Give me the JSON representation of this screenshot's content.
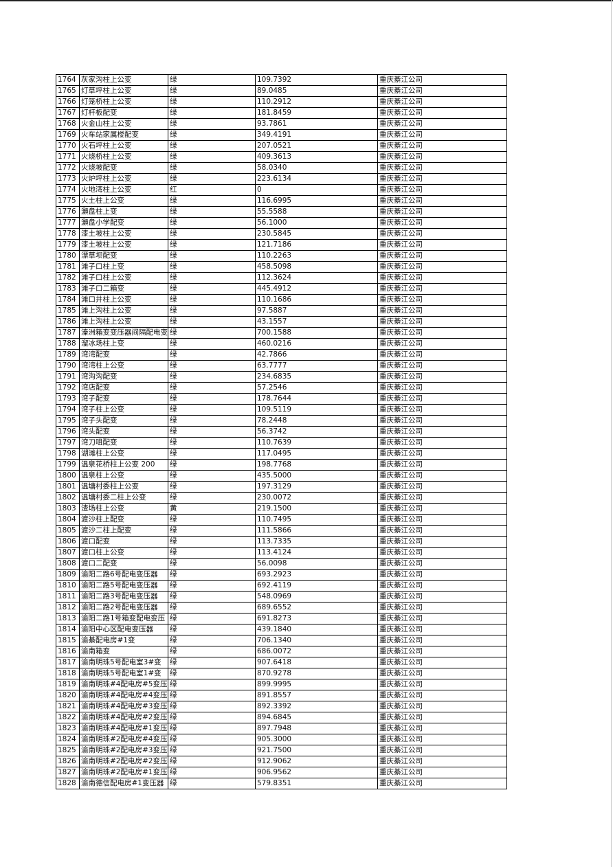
{
  "table": {
    "rows": [
      [
        "1764",
        "灰家沟柱上公变",
        "绿",
        "109.7392",
        "重庆綦江公司"
      ],
      [
        "1765",
        "灯草坪柱上公变",
        "绿",
        "89.0485",
        "重庆綦江公司"
      ],
      [
        "1766",
        "灯笼桥柱上公变",
        "绿",
        "110.2912",
        "重庆綦江公司"
      ],
      [
        "1767",
        "灯杆板配变",
        "绿",
        "181.8459",
        "重庆綦江公司"
      ],
      [
        "1768",
        "火金山柱上公变",
        "绿",
        "93.7861",
        "重庆綦江公司"
      ],
      [
        "1769",
        "火车站家属楼配变",
        "绿",
        "349.4191",
        "重庆綦江公司"
      ],
      [
        "1770",
        "火石坪柱上公变",
        "绿",
        "207.0521",
        "重庆綦江公司"
      ],
      [
        "1771",
        "火烧桥柱上公变",
        "绿",
        "409.3613",
        "重庆綦江公司"
      ],
      [
        "1772",
        "火烧坡配变",
        "绿",
        "58.0340",
        "重庆綦江公司"
      ],
      [
        "1773",
        "火炉坪柱上公变",
        "绿",
        "223.6134",
        "重庆綦江公司"
      ],
      [
        "1774",
        "火地湾柱上公变",
        "红",
        "0",
        "重庆綦江公司"
      ],
      [
        "1775",
        "火土柱上公变",
        "绿",
        "116.6995",
        "重庆綦江公司"
      ],
      [
        "1776",
        "灝盘柱上变",
        "绿",
        "55.5588",
        "重庆綦江公司"
      ],
      [
        "1777",
        "灝盘小学配变",
        "绿",
        "56.1000",
        "重庆綦江公司"
      ],
      [
        "1778",
        "漆土坡柱上公变",
        "绿",
        "230.5845",
        "重庆綦江公司"
      ],
      [
        "1779",
        "漆土坡柱上公变",
        "绿",
        "121.7186",
        "重庆綦江公司"
      ],
      [
        "1780",
        "漂草坝配变",
        "绿",
        "110.2263",
        "重庆綦江公司"
      ],
      [
        "1781",
        "滩子口柱上变",
        "绿",
        "458.5098",
        "重庆綦江公司"
      ],
      [
        "1782",
        "滩子口柱上公变",
        "绿",
        "112.3624",
        "重庆綦江公司"
      ],
      [
        "1783",
        "滩子口二箱变",
        "绿",
        "445.4912",
        "重庆綦江公司"
      ],
      [
        "1784",
        "滩口井柱上公变",
        "绿",
        "110.1686",
        "重庆綦江公司"
      ],
      [
        "1785",
        "滩上沟柱上公变",
        "绿",
        "97.5887",
        "重庆綦江公司"
      ],
      [
        "1786",
        "滩上沟柱上公变",
        "绿",
        "43.1557",
        "重庆綦江公司"
      ],
      [
        "1787",
        "溱洲箱变变压器间隔配电变",
        "绿",
        "700.1588",
        "重庆綦江公司"
      ],
      [
        "1788",
        "溜冰场柱上变",
        "绿",
        "460.0216",
        "重庆綦江公司"
      ],
      [
        "1789",
        "湾湾配变",
        "绿",
        "42.7866",
        "重庆綦江公司"
      ],
      [
        "1790",
        "湾湾柱上公变",
        "绿",
        "63.7777",
        "重庆綦江公司"
      ],
      [
        "1791",
        "湾沟沟配变",
        "绿",
        "234.6835",
        "重庆綦江公司"
      ],
      [
        "1792",
        "湾店配变",
        "绿",
        "57.2546",
        "重庆綦江公司"
      ],
      [
        "1793",
        "湾子配变",
        "绿",
        "178.7644",
        "重庆綦江公司"
      ],
      [
        "1794",
        "湾子柱上公变",
        "绿",
        "109.5119",
        "重庆綦江公司"
      ],
      [
        "1795",
        "湾子头配变",
        "绿",
        "78.2448",
        "重庆綦江公司"
      ],
      [
        "1796",
        "湾头配变",
        "绿",
        "56.3742",
        "重庆綦江公司"
      ],
      [
        "1797",
        "湾刀咀配变",
        "绿",
        "110.7639",
        "重庆綦江公司"
      ],
      [
        "1798",
        "湖滩柱上公变",
        "绿",
        "117.0495",
        "重庆綦江公司"
      ],
      [
        "1799",
        "温泉花桥柱上公变 200",
        "绿",
        "198.7768",
        "重庆綦江公司"
      ],
      [
        "1800",
        "温泉柱上公变",
        "绿",
        "435.5000",
        "重庆綦江公司"
      ],
      [
        "1801",
        "温塘村委柱上公变",
        "绿",
        "197.3129",
        "重庆綦江公司"
      ],
      [
        "1802",
        "温塘村委二柱上公变",
        "绿",
        "230.0072",
        "重庆綦江公司"
      ],
      [
        "1803",
        "渣场柱上公变",
        "黄",
        "219.1500",
        "重庆綦江公司"
      ],
      [
        "1804",
        "渡沙柱上配变",
        "绿",
        "110.7495",
        "重庆綦江公司"
      ],
      [
        "1805",
        "渡沙二柱上配变",
        "绿",
        "111.5866",
        "重庆綦江公司"
      ],
      [
        "1806",
        "渡口配变",
        "绿",
        "113.7335",
        "重庆綦江公司"
      ],
      [
        "1807",
        "渡口柱上公变",
        "绿",
        "113.4124",
        "重庆綦江公司"
      ],
      [
        "1808",
        "渡口二配变",
        "绿",
        "56.0098",
        "重庆綦江公司"
      ],
      [
        "1809",
        "渝阳二路6号配电变压器",
        "绿",
        "693.2923",
        "重庆綦江公司"
      ],
      [
        "1810",
        "渝阳二路5号配电变压器",
        "绿",
        "692.4119",
        "重庆綦江公司"
      ],
      [
        "1811",
        "渝阳二路3号配电变压器",
        "绿",
        "548.0969",
        "重庆綦江公司"
      ],
      [
        "1812",
        "渝阳二路2号配电变压器",
        "绿",
        "689.6552",
        "重庆綦江公司"
      ],
      [
        "1813",
        "渝阳二路1号箱变配电变压",
        "绿",
        "691.8273",
        "重庆綦江公司"
      ],
      [
        "1814",
        "渝阳中心区配电变压器",
        "绿",
        "439.1840",
        "重庆綦江公司"
      ],
      [
        "1815",
        "渝綦配电房#1变",
        "绿",
        "706.1340",
        "重庆綦江公司"
      ],
      [
        "1816",
        "渝南箱变",
        "绿",
        "686.0072",
        "重庆綦江公司"
      ],
      [
        "1817",
        "渝南明珠5号配电室3#变",
        "绿",
        "907.6418",
        "重庆綦江公司"
      ],
      [
        "1818",
        "渝南明珠5号配电室1#变",
        "绿",
        "870.9278",
        "重庆綦江公司"
      ],
      [
        "1819",
        "渝南明珠#4配电房#5变压",
        "绿",
        "899.9995",
        "重庆綦江公司"
      ],
      [
        "1820",
        "渝南明珠#4配电房#4变压",
        "绿",
        "891.8557",
        "重庆綦江公司"
      ],
      [
        "1821",
        "渝南明珠#4配电房#3变压",
        "绿",
        "892.3392",
        "重庆綦江公司"
      ],
      [
        "1822",
        "渝南明珠#4配电房#2变压",
        "绿",
        "894.6845",
        "重庆綦江公司"
      ],
      [
        "1823",
        "渝南明珠#4配电房#1变压",
        "绿",
        "897.7948",
        "重庆綦江公司"
      ],
      [
        "1824",
        "渝南明珠#2配电房#4变压",
        "绿",
        "905.3000",
        "重庆綦江公司"
      ],
      [
        "1825",
        "渝南明珠#2配电房#3变压",
        "绿",
        "921.7500",
        "重庆綦江公司"
      ],
      [
        "1826",
        "渝南明珠#2配电房#2变压",
        "绿",
        "912.9062",
        "重庆綦江公司"
      ],
      [
        "1827",
        "渝南明珠#2配电房#1变压",
        "绿",
        "906.9562",
        "重庆綦江公司"
      ],
      [
        "1828",
        "渝南德信配电房#1变压器",
        "绿",
        "579.8351",
        "重庆綦江公司"
      ]
    ]
  }
}
